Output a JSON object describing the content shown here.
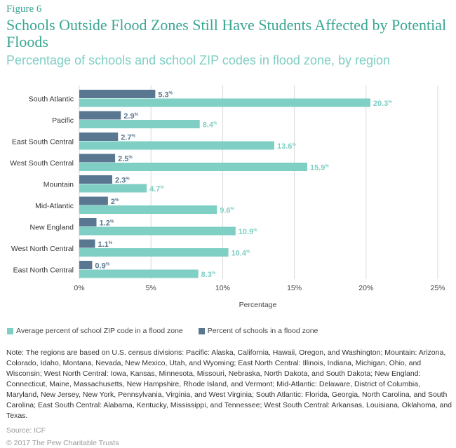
{
  "figure_label": "Figure 6",
  "colors": {
    "title": "#3aa693",
    "teal": "#7fcfc4",
    "dark": "#5a7791"
  },
  "chart_data": {
    "type": "bar",
    "orientation": "horizontal",
    "title": "Schools Outside Flood Zones Still Have Students Affected by Potential Floods",
    "subtitle": "Percentage of schools and school ZIP codes in flood zone, by region",
    "categories": [
      "South Atlantic",
      "Pacific",
      "East South Central",
      "West South Central",
      "Mountain",
      "Mid-Atlantic",
      "New England",
      "West North Central",
      "East North Central"
    ],
    "series": [
      {
        "name": "Percent of schools in a flood zone",
        "color": "#5a7791",
        "values": [
          5.3,
          2.9,
          2.7,
          2.5,
          2.3,
          2,
          1.2,
          1.1,
          0.9
        ],
        "labels": [
          "5.3",
          "2.9",
          "2.7",
          "2.5",
          "2.3",
          "2",
          "1.2",
          "1.1",
          "0.9"
        ]
      },
      {
        "name": "Average percent of school ZIP code in a flood zone",
        "color": "#7fcfc4",
        "values": [
          20.3,
          8.4,
          13.6,
          15.9,
          4.7,
          9.6,
          10.9,
          10.4,
          8.3
        ],
        "labels": [
          "20.3",
          "8.4",
          "13.6",
          "15.9",
          "4.7",
          "9.6",
          "10.9",
          "10.4",
          "8.3"
        ]
      }
    ],
    "label_suffix": "%",
    "xlabel": "Percentage",
    "xlim": [
      0,
      25
    ],
    "xticks": [
      "0%",
      "5%",
      "10%",
      "15%",
      "20%",
      "25%"
    ],
    "grid": true,
    "legend_position": "bottom-left"
  },
  "legend": [
    "Average percent of school ZIP code in a flood zone",
    "Percent of schools in a flood zone"
  ],
  "note": "Note: The regions are based on U.S. census divisions: Pacific: Alaska, California, Hawaii, Oregon, and Washington; Mountain: Arizona, Colorado, Idaho, Montana, Nevada, New Mexico, Utah, and Wyoming; East North Central: Illinois, Indiana, Michigan, Ohio, and Wisconsin; West North Central: Iowa, Kansas, Minnesota, Missouri, Nebraska, North Dakota, and South Dakota; New England: Connecticut, Maine, Massachusetts, New Hampshire, Rhode Island, and Vermont; Mid-Atlantic: Delaware, District of Columbia, Maryland, New Jersey, New York, Pennsylvania, Virginia, and West Virginia; South Atlantic: Florida, Georgia, North Carolina, and South Carolina; East South Central: Alabama, Kentucky, Mississippi, and Tennessee; West South Central: Arkansas, Louisiana, Oklahoma, and Texas.",
  "source": "Source: ICF",
  "copyright": "© 2017 The Pew Charitable Trusts"
}
